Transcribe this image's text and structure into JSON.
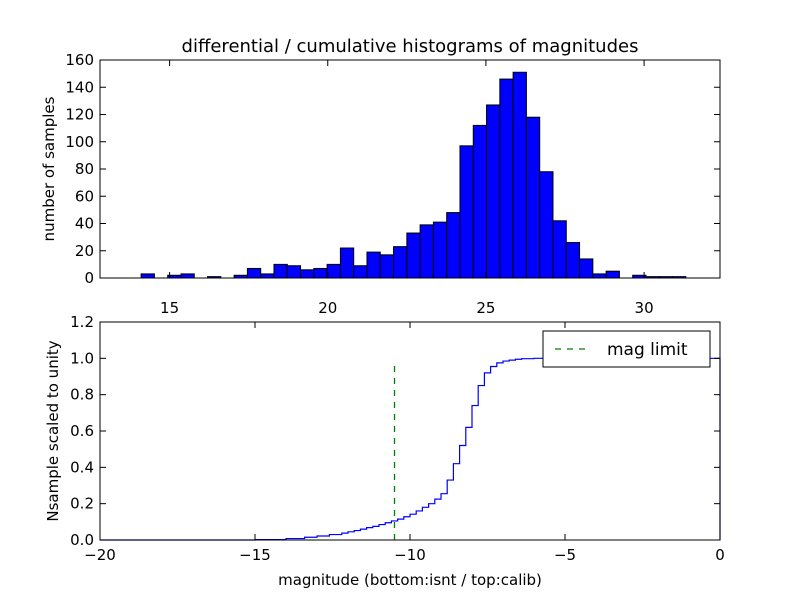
{
  "chart_data": [
    {
      "type": "bar",
      "title": "differential / cumulative histograms of magnitudes",
      "xlabel": "",
      "ylabel": "number of samples",
      "xlim": [
        12.8,
        32.4
      ],
      "ylim": [
        0,
        160
      ],
      "xticks": [
        15,
        20,
        25,
        30
      ],
      "yticks": [
        0,
        20,
        40,
        60,
        80,
        100,
        120,
        140,
        160
      ],
      "bar_color": "#0000ff",
      "bin_width": 0.42,
      "bins": [
        {
          "x": 14.1,
          "value": 3
        },
        {
          "x": 14.94,
          "value": 2
        },
        {
          "x": 15.36,
          "value": 3
        },
        {
          "x": 16.2,
          "value": 1
        },
        {
          "x": 17.04,
          "value": 2
        },
        {
          "x": 17.46,
          "value": 7
        },
        {
          "x": 17.88,
          "value": 3
        },
        {
          "x": 18.3,
          "value": 10
        },
        {
          "x": 18.72,
          "value": 9
        },
        {
          "x": 19.14,
          "value": 6
        },
        {
          "x": 19.56,
          "value": 7
        },
        {
          "x": 19.98,
          "value": 10
        },
        {
          "x": 20.4,
          "value": 22
        },
        {
          "x": 20.82,
          "value": 9
        },
        {
          "x": 21.24,
          "value": 19
        },
        {
          "x": 21.66,
          "value": 17
        },
        {
          "x": 22.08,
          "value": 23
        },
        {
          "x": 22.5,
          "value": 33
        },
        {
          "x": 22.92,
          "value": 39
        },
        {
          "x": 23.34,
          "value": 41
        },
        {
          "x": 23.76,
          "value": 48
        },
        {
          "x": 24.18,
          "value": 97
        },
        {
          "x": 24.6,
          "value": 112
        },
        {
          "x": 25.02,
          "value": 127
        },
        {
          "x": 25.44,
          "value": 146
        },
        {
          "x": 25.86,
          "value": 151
        },
        {
          "x": 26.28,
          "value": 118
        },
        {
          "x": 26.7,
          "value": 78
        },
        {
          "x": 27.12,
          "value": 42
        },
        {
          "x": 27.54,
          "value": 26
        },
        {
          "x": 27.96,
          "value": 14
        },
        {
          "x": 28.38,
          "value": 3
        },
        {
          "x": 28.8,
          "value": 5
        },
        {
          "x": 29.64,
          "value": 2
        },
        {
          "x": 30.06,
          "value": 1
        },
        {
          "x": 30.48,
          "value": 1
        },
        {
          "x": 30.9,
          "value": 1
        }
      ]
    },
    {
      "type": "line",
      "title": "",
      "xlabel": "magnitude (bottom:isnt / top:calib)",
      "ylabel": "Nsample scaled to unity",
      "xlim": [
        -20,
        0
      ],
      "ylim": [
        0,
        1.2
      ],
      "xticks": [
        -20,
        -15,
        -10,
        -5,
        0
      ],
      "xtick_labels": [
        "−20",
        "−15",
        "−10",
        "−5",
        "0"
      ],
      "yticks": [
        0,
        0.2,
        0.4,
        0.6,
        0.8,
        1.0,
        1.2
      ],
      "ytick_labels": [
        "0.0",
        "0.2",
        "0.4",
        "0.6",
        "0.8",
        "1.0",
        "1.2"
      ],
      "series": [
        {
          "style": "step",
          "color": "#0000ff",
          "x": [
            -20,
            -15,
            -14,
            -13.4,
            -13,
            -12.6,
            -12.2,
            -12,
            -11.8,
            -11.6,
            -11.4,
            -11.2,
            -11,
            -10.8,
            -10.6,
            -10.4,
            -10.2,
            -10,
            -9.8,
            -9.6,
            -9.4,
            -9.2,
            -9,
            -8.8,
            -8.6,
            -8.4,
            -8.2,
            -8,
            -7.8,
            -7.6,
            -7.4,
            -7.2,
            -7,
            -6.8,
            -6.6,
            -6.4,
            -6,
            -5,
            0
          ],
          "y": [
            0,
            0.002,
            0.008,
            0.015,
            0.022,
            0.03,
            0.038,
            0.045,
            0.052,
            0.06,
            0.068,
            0.075,
            0.085,
            0.095,
            0.105,
            0.115,
            0.128,
            0.142,
            0.16,
            0.18,
            0.2,
            0.225,
            0.255,
            0.33,
            0.42,
            0.52,
            0.62,
            0.74,
            0.85,
            0.92,
            0.955,
            0.975,
            0.985,
            0.99,
            0.995,
            0.998,
            1.0,
            1.0,
            1.0
          ]
        },
        {
          "name": "mag limit",
          "style": "dashed",
          "color": "#008000",
          "x": [
            -10.5,
            -10.5
          ],
          "y": [
            0,
            0.97
          ]
        }
      ],
      "legend": {
        "position": "top-right",
        "entries": [
          "mag limit"
        ]
      }
    }
  ]
}
